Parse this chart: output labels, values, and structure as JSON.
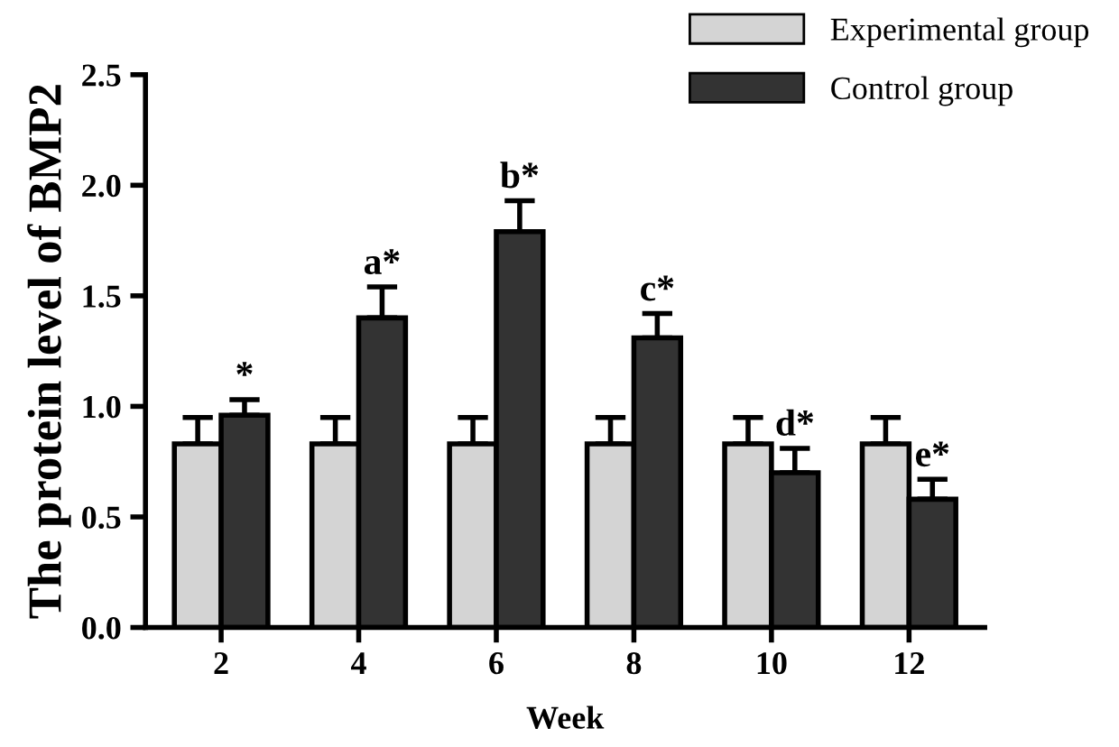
{
  "chart_data": {
    "type": "bar",
    "xlabel": "Week",
    "ylabel": "The protein level of BMP2",
    "categories": [
      "2",
      "4",
      "6",
      "8",
      "10",
      "12"
    ],
    "series": [
      {
        "name": "Experimental group",
        "color": "#d4d4d4",
        "values": [
          0.83,
          0.83,
          0.83,
          0.83,
          0.83,
          0.83
        ],
        "errors": [
          0.12,
          0.12,
          0.12,
          0.12,
          0.12,
          0.12
        ]
      },
      {
        "name": "Control group",
        "color": "#333333",
        "values": [
          0.96,
          1.4,
          1.79,
          1.31,
          0.7,
          0.58
        ],
        "errors": [
          0.07,
          0.14,
          0.14,
          0.11,
          0.11,
          0.09
        ]
      }
    ],
    "ylim": [
      0,
      2.5
    ],
    "yticks": [
      {
        "value": 0,
        "label": "0.0"
      },
      {
        "value": 0.5,
        "label": "0.5"
      },
      {
        "value": 1,
        "label": "1.0"
      },
      {
        "value": 1.5,
        "label": "1.5"
      },
      {
        "value": 2,
        "label": "2.0"
      },
      {
        "value": 2.5,
        "label": "2.5"
      }
    ],
    "annotations": [
      {
        "text": "*",
        "x": "2",
        "y": 1.03
      },
      {
        "text": "a*",
        "x": "4",
        "y": 1.54
      },
      {
        "text": "b*",
        "x": "6",
        "y": 1.93
      },
      {
        "text": "c*",
        "x": "8",
        "y": 1.42
      },
      {
        "text": "d*",
        "x": "10",
        "y": 0.81
      },
      {
        "text": "e*",
        "x": "12",
        "y": 0.67
      }
    ],
    "legend": "top right",
    "grid": false
  }
}
